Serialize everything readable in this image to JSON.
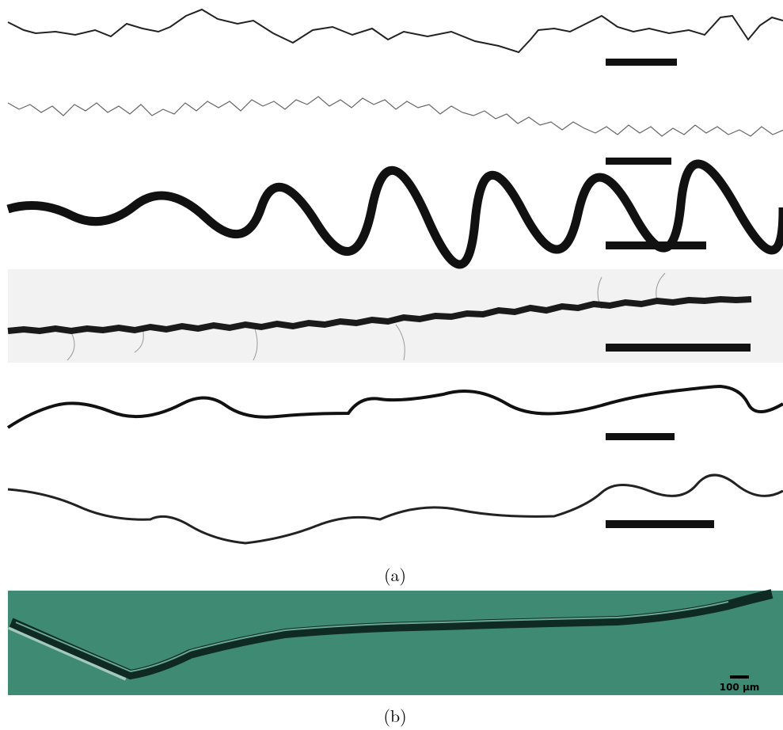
{
  "panel_a": {
    "label": "(a)"
  },
  "panel_b": {
    "label": "(b)",
    "scale_bar": "100 µm"
  }
}
